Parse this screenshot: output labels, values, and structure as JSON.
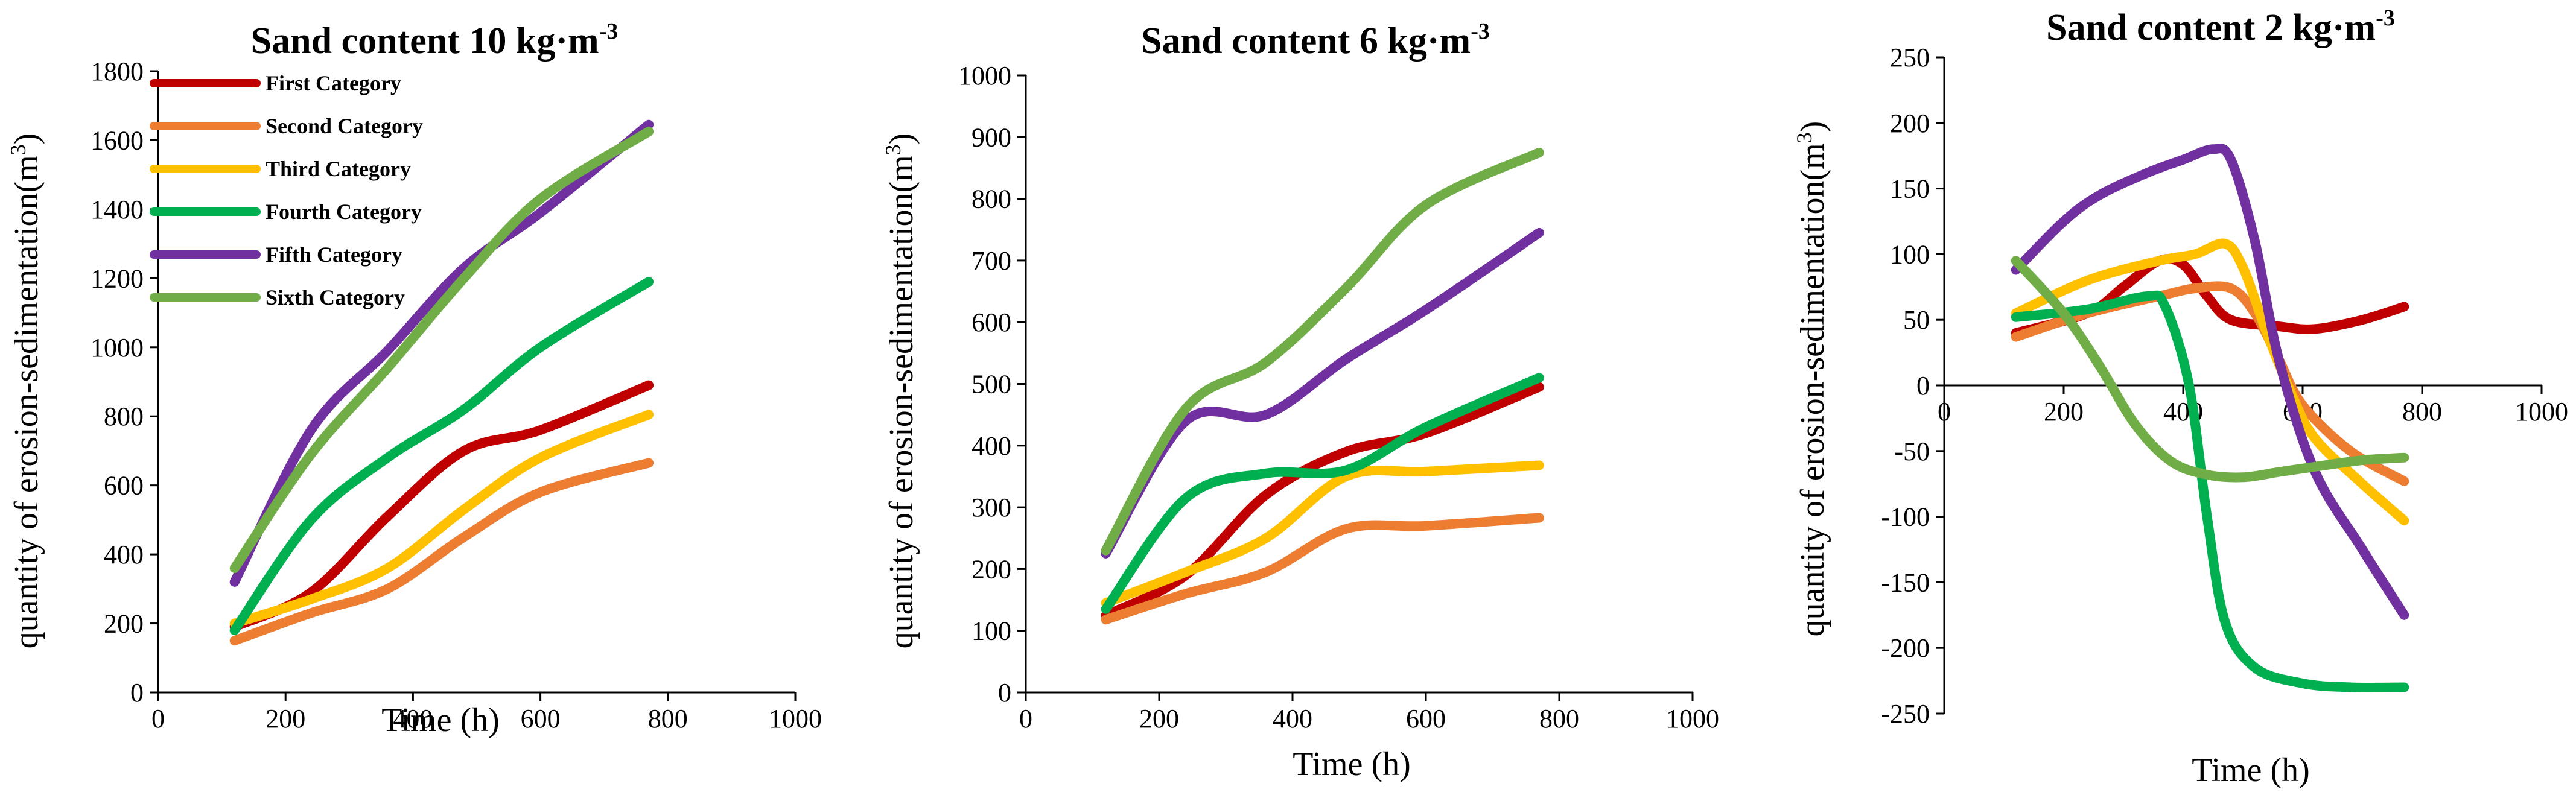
{
  "colors": {
    "First Category": "#C00000",
    "Second Category": "#ED7D31",
    "Third Category": "#FFC000",
    "Fourth Category": "#00B050",
    "Fifth Category": "#7030A0",
    "Sixth Category": "#70AD47"
  },
  "chart_data": [
    {
      "type": "line",
      "title": "Sand content 10 kg·m",
      "title_sup": "-3",
      "xlabel": "Time (h)",
      "ylabel": "quantity of erosion-sedimentation(m",
      "ylabel_sup": "3",
      "ylabel_end": ")",
      "xlim": [
        0,
        1000
      ],
      "ylim": [
        0,
        1800
      ],
      "xticks": [
        0,
        200,
        400,
        600,
        800,
        1000
      ],
      "yticks": [
        0,
        200,
        400,
        600,
        800,
        1000,
        1200,
        1400,
        1600,
        1800
      ],
      "grid": false,
      "legend": "top-left",
      "x": [
        120,
        240,
        360,
        480,
        600,
        770
      ],
      "series": [
        {
          "name": "First Category",
          "values": [
            190,
            290,
            510,
            700,
            760,
            890
          ]
        },
        {
          "name": "Second Category",
          "values": [
            150,
            230,
            300,
            450,
            580,
            665
          ]
        },
        {
          "name": "Third Category",
          "values": [
            200,
            270,
            360,
            530,
            680,
            805
          ]
        },
        {
          "name": "Fourth Category",
          "values": [
            180,
            500,
            680,
            820,
            1000,
            1190
          ]
        },
        {
          "name": "Fifth Category",
          "values": [
            320,
            760,
            990,
            1230,
            1390,
            1645
          ]
        },
        {
          "name": "Sixth Category",
          "values": [
            360,
            690,
            940,
            1200,
            1430,
            1625
          ]
        }
      ]
    },
    {
      "type": "line",
      "title": "Sand content 6 kg·m",
      "title_sup": "-3",
      "xlabel": "Time (h)",
      "ylabel": "quantity of erosion-sedimentation(m",
      "ylabel_sup": "3",
      "ylabel_end": ")",
      "xlim": [
        0,
        1000
      ],
      "ylim": [
        0,
        1000
      ],
      "xticks": [
        0,
        200,
        400,
        600,
        800,
        1000
      ],
      "yticks": [
        0,
        100,
        200,
        300,
        400,
        500,
        600,
        700,
        800,
        900,
        1000
      ],
      "grid": false,
      "legend": "none",
      "x": [
        120,
        240,
        360,
        480,
        600,
        770
      ],
      "series": [
        {
          "name": "First Category",
          "values": [
            125,
            190,
            320,
            390,
            420,
            495
          ]
        },
        {
          "name": "Second Category",
          "values": [
            118,
            160,
            195,
            265,
            270,
            283
          ]
        },
        {
          "name": "Third Category",
          "values": [
            145,
            195,
            250,
            350,
            358,
            368
          ]
        },
        {
          "name": "Fourth Category",
          "values": [
            135,
            315,
            355,
            360,
            430,
            510
          ]
        },
        {
          "name": "Fifth Category",
          "values": [
            225,
            440,
            450,
            540,
            620,
            745
          ]
        },
        {
          "name": "Sixth Category",
          "values": [
            230,
            460,
            535,
            655,
            790,
            875
          ]
        }
      ]
    },
    {
      "type": "line",
      "title": "Sand content 2 kg·m",
      "title_sup": "-3",
      "xlabel": "Time (h)",
      "ylabel": "quantity of erosion-sedimentation(m",
      "ylabel_sup": "3",
      "ylabel_end": ")",
      "xlim": [
        0,
        1000
      ],
      "ylim": [
        -250,
        250
      ],
      "xticks": [
        0,
        200,
        400,
        600,
        800,
        1000
      ],
      "yticks": [
        -250,
        -200,
        -150,
        -100,
        -50,
        0,
        50,
        100,
        150,
        200,
        250
      ],
      "grid": false,
      "legend": "none",
      "series": [
        {
          "name": "First Category",
          "x": [
            120,
            240,
            300,
            360,
            400,
            440,
            480,
            560,
            620,
            700,
            770
          ],
          "values": [
            40,
            55,
            75,
            95,
            92,
            68,
            50,
            45,
            43,
            50,
            60
          ]
        },
        {
          "name": "Second Category",
          "x": [
            120,
            240,
            360,
            420,
            480,
            520,
            560,
            600,
            680,
            770
          ],
          "values": [
            37,
            55,
            68,
            74,
            74,
            55,
            20,
            -15,
            -50,
            -73
          ]
        },
        {
          "name": "Third Category",
          "x": [
            120,
            240,
            360,
            420,
            470,
            500,
            540,
            580,
            620,
            700,
            770
          ],
          "values": [
            55,
            80,
            95,
            100,
            108,
            90,
            40,
            -5,
            -40,
            -75,
            -103
          ]
        },
        {
          "name": "Fourth Category",
          "x": [
            120,
            240,
            340,
            370,
            410,
            440,
            470,
            520,
            600,
            680,
            770
          ],
          "values": [
            52,
            58,
            68,
            60,
            0,
            -100,
            -180,
            -215,
            -227,
            -230,
            -230
          ]
        },
        {
          "name": "Fifth Category",
          "x": [
            120,
            200,
            260,
            340,
            400,
            450,
            480,
            520,
            560,
            620,
            700,
            770
          ],
          "values": [
            88,
            125,
            145,
            162,
            172,
            180,
            172,
            110,
            20,
            -65,
            -125,
            -175
          ]
        },
        {
          "name": "Sixth Category",
          "x": [
            120,
            200,
            260,
            320,
            380,
            440,
            500,
            560,
            620,
            700,
            770
          ],
          "values": [
            95,
            55,
            15,
            -30,
            -58,
            -68,
            -70,
            -66,
            -62,
            -57,
            -55
          ]
        }
      ]
    }
  ]
}
